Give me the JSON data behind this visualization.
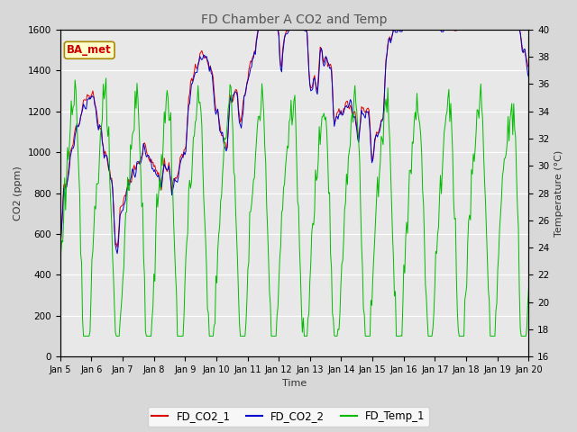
{
  "title": "FD Chamber A CO2 and Temp",
  "xlabel": "Time",
  "ylabel_left": "CO2 (ppm)",
  "ylabel_right": "Temperature (°C)",
  "ylim_left": [
    0,
    1600
  ],
  "ylim_right": [
    16,
    40
  ],
  "xlim": [
    0,
    15
  ],
  "xtick_labels": [
    "Jan 5",
    "Jan 6",
    "Jan 7",
    "Jan 8",
    "Jan 9",
    "Jan 10",
    "Jan 11",
    "Jan 12",
    "Jan 13",
    "Jan 14",
    "Jan 15",
    "Jan 16",
    "Jan 17",
    "Jan 18",
    "Jan 19",
    "Jan 20"
  ],
  "color_co2_1": "#dd0000",
  "color_co2_2": "#0000cc",
  "color_temp": "#00bb00",
  "legend_labels": [
    "FD_CO2_1",
    "FD_CO2_2",
    "FD_Temp_1"
  ],
  "annotation_text": "BA_met",
  "annotation_box_facecolor": "#ffffcc",
  "annotation_text_color": "#cc0000",
  "annotation_edge_color": "#aa8800",
  "plot_bg_color": "#e8e8e8",
  "fig_bg_color": "#d8d8d8",
  "grid_color": "#ffffff",
  "title_color": "#555555",
  "seed": 123,
  "n_points": 500,
  "figsize": [
    6.4,
    4.8
  ],
  "dpi": 100
}
